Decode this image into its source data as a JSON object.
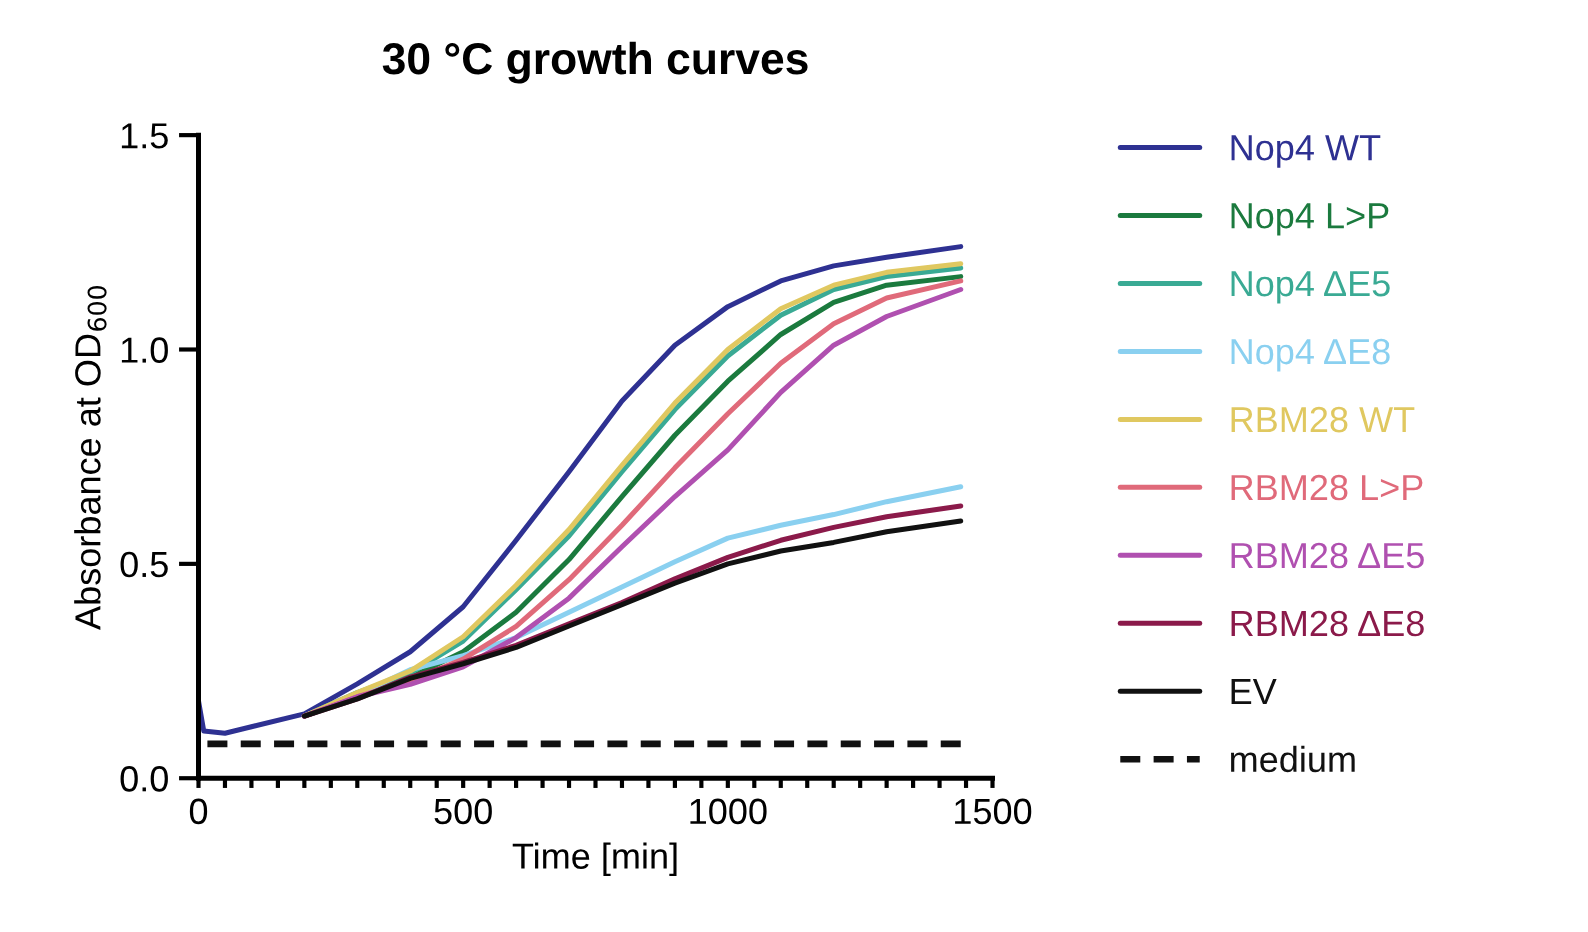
{
  "chart_data": {
    "type": "line",
    "title": "30 °C growth curves",
    "xlabel": "Time [min]",
    "ylabel": "Absorbance at OD$_{600}$",
    "x": [
      0,
      10,
      50,
      100,
      200,
      300,
      400,
      500,
      600,
      700,
      800,
      900,
      1000,
      1100,
      1200,
      1300,
      1440
    ],
    "xlim": [
      0,
      1500
    ],
    "ylim": [
      0,
      1.5
    ],
    "xticks": [
      0,
      {
        "value": 50,
        "label": null
      },
      {
        "value": 100,
        "label": null
      },
      {
        "value": 150,
        "label": null
      },
      {
        "value": 200,
        "label": null
      },
      {
        "value": 250,
        "label": null
      },
      {
        "value": 300,
        "label": null
      },
      {
        "value": 350,
        "label": null
      },
      {
        "value": 400,
        "label": null
      },
      {
        "value": 450,
        "label": null
      },
      500,
      {
        "value": 550,
        "label": null
      },
      {
        "value": 600,
        "label": null
      },
      {
        "value": 650,
        "label": null
      },
      {
        "value": 700,
        "label": null
      },
      {
        "value": 750,
        "label": null
      },
      {
        "value": 800,
        "label": null
      },
      {
        "value": 850,
        "label": null
      },
      {
        "value": 900,
        "label": null
      },
      {
        "value": 950,
        "label": null
      },
      1000,
      {
        "value": 1050,
        "label": null
      },
      {
        "value": 1100,
        "label": null
      },
      {
        "value": 1150,
        "label": null
      },
      {
        "value": 1200,
        "label": null
      },
      {
        "value": 1250,
        "label": null
      },
      {
        "value": 1300,
        "label": null
      },
      {
        "value": 1350,
        "label": null
      },
      {
        "value": 1400,
        "label": null
      },
      {
        "value": 1450,
        "label": null
      },
      1500
    ],
    "yticks": [
      {
        "value": 0,
        "label": "0.0"
      },
      0.5,
      {
        "value": 1,
        "label": "1.0"
      },
      1.5
    ],
    "grid": false,
    "legend": "right",
    "series": [
      {
        "name": "Nop4 WT",
        "color": "#2e3192",
        "values": [
          0.18,
          0.11,
          0.105,
          0.12,
          0.15,
          0.22,
          0.295,
          0.4,
          0.555,
          0.715,
          0.88,
          1.01,
          1.1,
          1.16,
          1.195,
          1.215,
          1.24
        ]
      },
      {
        "name": "Nop4 L>P",
        "color": "#1b7a3e",
        "values": [
          null,
          null,
          null,
          null,
          0.145,
          0.19,
          0.235,
          0.295,
          0.387,
          0.51,
          0.657,
          0.8,
          0.926,
          1.035,
          1.11,
          1.15,
          1.17
        ]
      },
      {
        "name": "Nop4 ΔE5",
        "color": "#3aaa94",
        "values": [
          null,
          null,
          null,
          null,
          0.145,
          0.2,
          0.245,
          0.32,
          0.44,
          0.565,
          0.715,
          0.86,
          0.985,
          1.08,
          1.14,
          1.17,
          1.19
        ]
      },
      {
        "name": "Nop4 ΔE8",
        "color": "#8ad0f0",
        "values": [
          null,
          null,
          null,
          null,
          0.145,
          0.194,
          0.253,
          0.286,
          0.328,
          0.387,
          0.446,
          0.505,
          0.56,
          0.59,
          0.615,
          0.645,
          0.68
        ]
      },
      {
        "name": "RBM28 WT",
        "color": "#e0c860",
        "values": [
          null,
          null,
          null,
          null,
          0.145,
          0.2,
          0.25,
          0.33,
          0.45,
          0.58,
          0.73,
          0.875,
          1.0,
          1.095,
          1.15,
          1.18,
          1.2
        ]
      },
      {
        "name": "RBM28 L>P",
        "color": "#e06a7a",
        "values": [
          null,
          null,
          null,
          null,
          0.145,
          0.19,
          0.227,
          0.278,
          0.354,
          0.463,
          0.59,
          0.724,
          0.85,
          0.968,
          1.06,
          1.12,
          1.16
        ]
      },
      {
        "name": "RBM28 ΔE5",
        "color": "#b050b0",
        "values": [
          null,
          null,
          null,
          null,
          0.145,
          0.19,
          0.219,
          0.26,
          0.328,
          0.42,
          0.54,
          0.657,
          0.766,
          0.9,
          1.01,
          1.077,
          1.14
        ]
      },
      {
        "name": "RBM28 ΔE8",
        "color": "#8b1a4a",
        "values": [
          null,
          null,
          null,
          null,
          0.145,
          0.185,
          0.236,
          0.27,
          0.31,
          0.36,
          0.41,
          0.465,
          0.515,
          0.555,
          0.585,
          0.61,
          0.635
        ]
      },
      {
        "name": "EV",
        "color": "#111111",
        "values": [
          null,
          null,
          null,
          null,
          0.145,
          0.185,
          0.233,
          0.267,
          0.305,
          0.355,
          0.405,
          0.455,
          0.5,
          0.53,
          0.55,
          0.575,
          0.6
        ]
      },
      {
        "name": "medium",
        "color": "#111111",
        "line_style": "dashed",
        "values": [
          0.08,
          0.08,
          0.08,
          0.08,
          0.08,
          0.08,
          0.08,
          0.08,
          0.08,
          0.08,
          0.08,
          0.08,
          0.08,
          0.08,
          0.08,
          0.08,
          0.08
        ]
      }
    ]
  }
}
